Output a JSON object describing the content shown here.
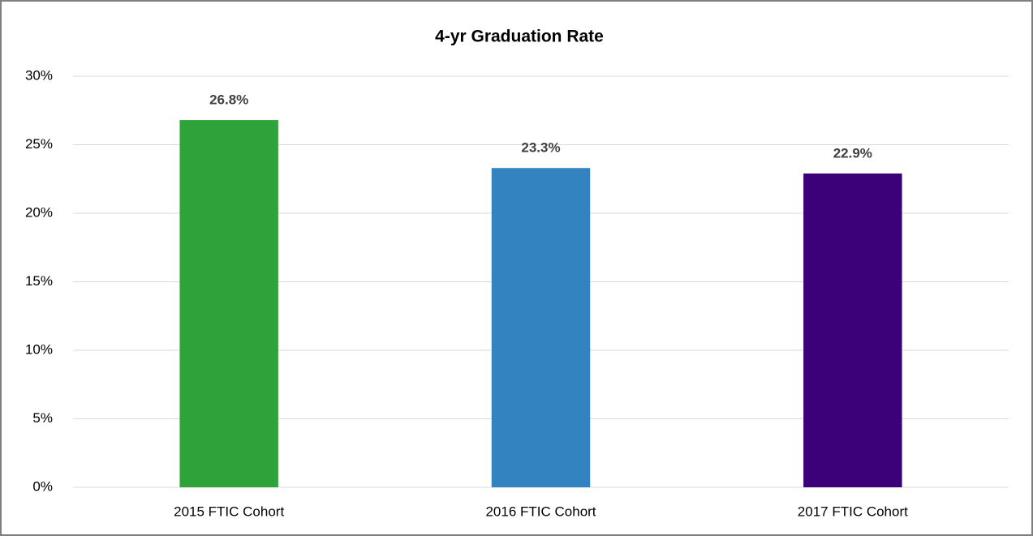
{
  "chart_data": {
    "type": "bar",
    "title": "4-yr Graduation Rate",
    "categories": [
      "2015 FTIC Cohort",
      "2016 FTIC Cohort",
      "2017 FTIC Cohort"
    ],
    "values": [
      26.8,
      23.3,
      22.9
    ],
    "value_labels": [
      "26.8%",
      "23.3%",
      "22.9%"
    ],
    "colors": [
      "#2ea33a",
      "#3283c0",
      "#3c0078"
    ],
    "ylim": [
      0,
      30
    ],
    "yticks": [
      {
        "value": 0,
        "label": "0%"
      },
      {
        "value": 5,
        "label": "5%"
      },
      {
        "value": 10,
        "label": "10%"
      },
      {
        "value": 15,
        "label": "15%"
      },
      {
        "value": 20,
        "label": "20%"
      },
      {
        "value": 25,
        "label": "25%"
      },
      {
        "value": 30,
        "label": "30%"
      }
    ],
    "grid": true
  }
}
